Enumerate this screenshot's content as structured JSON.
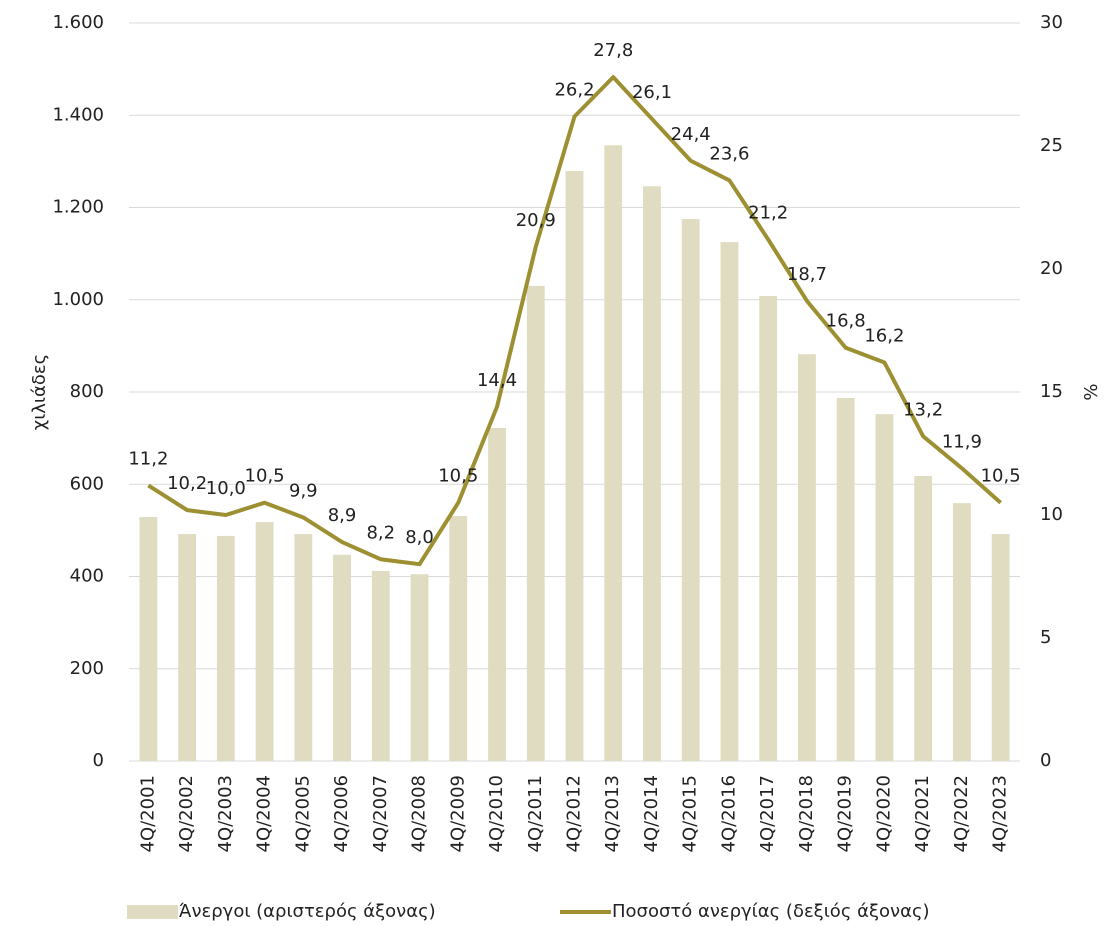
{
  "chart_data": {
    "type": "bar",
    "categories": [
      "4Q/2001",
      "4Q/2002",
      "4Q/2003",
      "4Q/2004",
      "4Q/2005",
      "4Q/2006",
      "4Q/2007",
      "4Q/2008",
      "4Q/2009",
      "4Q/2010",
      "4Q/2011",
      "4Q/2012",
      "4Q/2013",
      "4Q/2014",
      "4Q/2015",
      "4Q/2016",
      "4Q/2017",
      "4Q/2018",
      "4Q/2019",
      "4Q/2020",
      "4Q/2021",
      "4Q/2022",
      "4Q/2023"
    ],
    "series": [
      {
        "name": "Άνεργοι (αριστερός άξονας)",
        "type": "bar",
        "color": "#e0dcc1",
        "values": [
          529,
          492,
          488,
          518,
          492,
          447,
          412,
          405,
          531,
          722,
          1030,
          1279,
          1335,
          1246,
          1175,
          1125,
          1008,
          882,
          787,
          752,
          618,
          559,
          492
        ]
      },
      {
        "name": "Ποσοστό ανεργίας (δεξιός άξονας)",
        "type": "line",
        "axis": "y2",
        "color": "#9d9032",
        "values": [
          11.2,
          10.2,
          10.0,
          10.5,
          9.9,
          8.9,
          8.2,
          8.0,
          10.5,
          14.4,
          20.9,
          26.2,
          27.8,
          26.1,
          24.4,
          23.6,
          21.2,
          18.7,
          16.8,
          16.2,
          13.2,
          11.9,
          10.5
        ],
        "value_labels": [
          "11,2",
          "10,2",
          "10,0",
          "10,5",
          "9,9",
          "8,9",
          "8,2",
          "8,0",
          "10,5",
          "14,4",
          "20,9",
          "26,2",
          "27,8",
          "26,1",
          "24,4",
          "23,6",
          "21,2",
          "18,7",
          "16,8",
          "16,2",
          "13,2",
          "11,9",
          "10,5"
        ]
      }
    ],
    "ylabel": "χιλιάδες",
    "y2label": "%",
    "ylim": [
      0,
      1600
    ],
    "yticks": [
      0,
      200,
      400,
      600,
      800,
      {
        "value": 1000,
        "label": "1.000"
      },
      {
        "value": 1200,
        "label": "1.200"
      },
      {
        "value": 1400,
        "label": "1.400"
      },
      {
        "value": 1600,
        "label": "1.600"
      }
    ],
    "y2lim": [
      0,
      30
    ],
    "y2ticks": [
      0,
      5,
      10,
      15,
      20,
      25,
      30
    ],
    "grid": true,
    "legend": "bottom"
  }
}
